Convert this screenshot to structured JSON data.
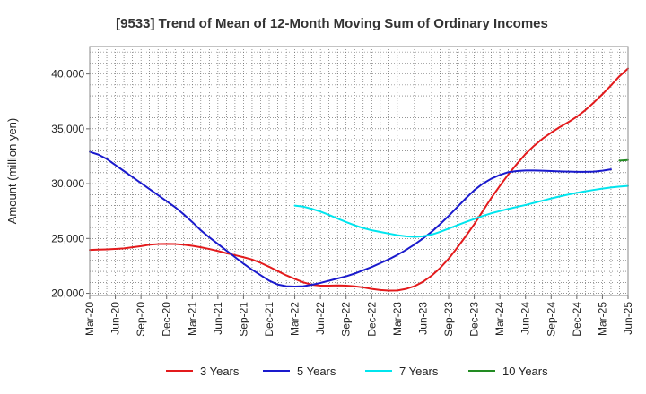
{
  "chart_data": {
    "type": "line",
    "title": "[9533]  Trend of Mean of 12-Month Moving Sum of Ordinary Incomes",
    "xlabel": "",
    "ylabel": "Amount (million yen)",
    "ylim": [
      19800,
      42500
    ],
    "yticks": [
      20000,
      25000,
      30000,
      35000,
      40000
    ],
    "ytick_labels": [
      "20,000",
      "25,000",
      "30,000",
      "35,000",
      "40,000"
    ],
    "x_index_range": [
      0,
      63
    ],
    "xtick_labels": [
      "Mar-20",
      "Jun-20",
      "Sep-20",
      "Dec-20",
      "Mar-21",
      "Jun-21",
      "Sep-21",
      "Dec-21",
      "Mar-22",
      "Jun-22",
      "Sep-22",
      "Dec-22",
      "Mar-23",
      "Jun-23",
      "Sep-23",
      "Dec-23",
      "Mar-24",
      "Jun-24",
      "Sep-24",
      "Dec-24",
      "Mar-25",
      "Jun-25"
    ],
    "series": [
      {
        "name": "3 Years",
        "color": "#e31a1c",
        "start_index": 0,
        "values": [
          23950,
          23980,
          24010,
          24050,
          24100,
          24200,
          24300,
          24430,
          24490,
          24510,
          24490,
          24430,
          24330,
          24200,
          24040,
          23860,
          23660,
          23480,
          23290,
          23080,
          22780,
          22420,
          22030,
          21640,
          21320,
          21000,
          20780,
          20700,
          20700,
          20720,
          20700,
          20640,
          20540,
          20400,
          20300,
          20250,
          20260,
          20400,
          20650,
          21050,
          21600,
          22300,
          23150,
          24150,
          25200,
          26300,
          27500,
          28700,
          29800,
          30850,
          31800,
          32700,
          33450,
          34100,
          34650,
          35150,
          35600,
          36100,
          36700,
          37400,
          38150,
          38950,
          39800,
          40500
        ]
      },
      {
        "name": "5 Years",
        "color": "#1a1acd",
        "start_index": 0,
        "values": [
          32900,
          32650,
          32250,
          31700,
          31150,
          30600,
          30050,
          29500,
          28950,
          28400,
          27850,
          27200,
          26500,
          25750,
          25100,
          24500,
          23900,
          23300,
          22700,
          22150,
          21650,
          21150,
          20800,
          20650,
          20620,
          20650,
          20780,
          20950,
          21150,
          21350,
          21550,
          21800,
          22100,
          22400,
          22750,
          23100,
          23500,
          23950,
          24450,
          25000,
          25600,
          26300,
          27050,
          27850,
          28650,
          29400,
          30000,
          30450,
          30800,
          31050,
          31150,
          31200,
          31200,
          31180,
          31150,
          31120,
          31100,
          31080,
          31080,
          31100,
          31180,
          31300
        ]
      },
      {
        "name": "7 Years",
        "color": "#00e5ee",
        "start_index": 24,
        "values": [
          28000,
          27900,
          27700,
          27450,
          27150,
          26820,
          26500,
          26200,
          25950,
          25750,
          25600,
          25450,
          25300,
          25200,
          25150,
          25200,
          25350,
          25600,
          25900,
          26200,
          26500,
          26780,
          27050,
          27300,
          27500,
          27700,
          27880,
          28050,
          28250,
          28450,
          28650,
          28830,
          29000,
          29160,
          29300,
          29430,
          29550,
          29650,
          29730,
          29790
        ]
      },
      {
        "name": "10 Years",
        "color": "#228b22",
        "start_index": 62,
        "values": [
          32100,
          32150
        ]
      }
    ]
  }
}
